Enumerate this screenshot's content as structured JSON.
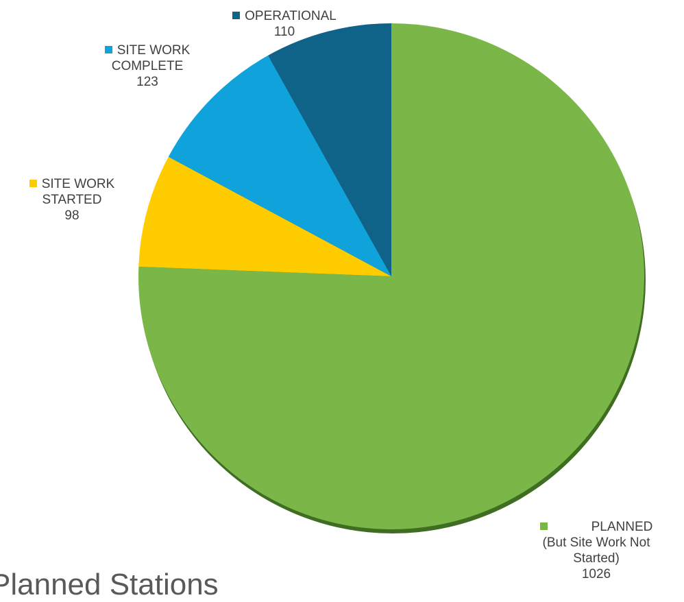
{
  "chart_data": {
    "type": "pie",
    "title": "Planned Stations",
    "slices": [
      {
        "name": "PLANNED",
        "name_line2": "(But Site Work Not",
        "name_line3": "Started)",
        "value": 1026,
        "color": "#7ab648"
      },
      {
        "name": "SITE WORK",
        "name_line2": "STARTED",
        "value": 98,
        "color": "#ffcc00"
      },
      {
        "name": "SITE WORK",
        "name_line2": "COMPLETE",
        "value": 123,
        "color": "#0fa2db"
      },
      {
        "name": "OPERATIONAL",
        "value": 110,
        "color": "#0f6389"
      }
    ],
    "order": "clockwise-from-top"
  }
}
